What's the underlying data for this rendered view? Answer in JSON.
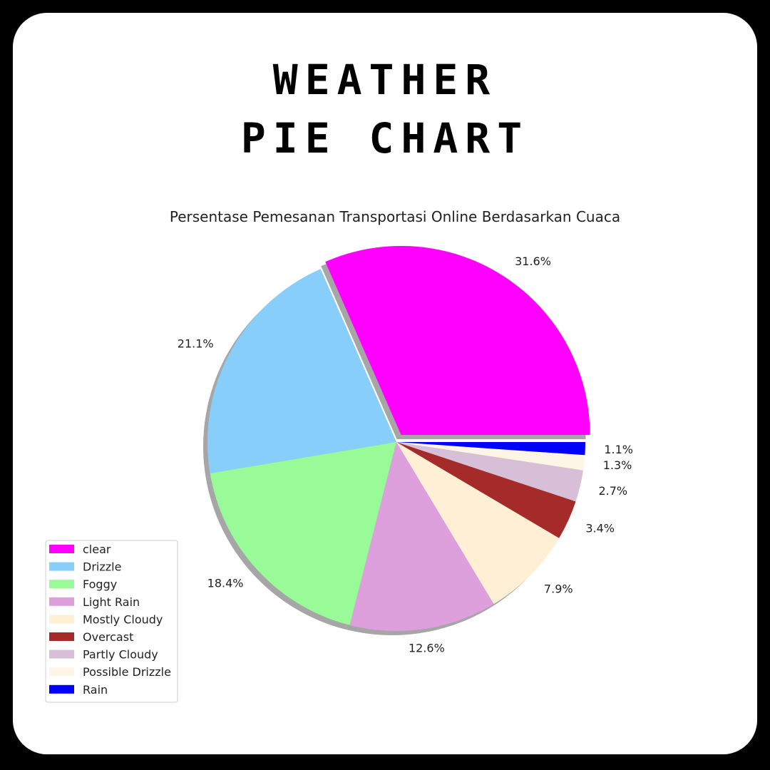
{
  "header": {
    "title_line_1": "WEATHER",
    "title_line_2": "PIE CHART"
  },
  "chart_data": {
    "type": "pie",
    "title": "Persentase Pemesanan Transportasi Online Berdasarkan Cuaca",
    "slices": [
      {
        "label": "clear",
        "value": 31.6,
        "display": "31.6%",
        "color": "#ff00ff",
        "exploded": true
      },
      {
        "label": "Drizzle",
        "value": 21.1,
        "display": "21.1%",
        "color": "#87cefa",
        "exploded": false
      },
      {
        "label": "Foggy",
        "value": 18.4,
        "display": "18.4%",
        "color": "#98fb98",
        "exploded": false
      },
      {
        "label": "Light Rain",
        "value": 12.6,
        "display": "12.6%",
        "color": "#dda0dd",
        "exploded": false
      },
      {
        "label": "Mostly Cloudy",
        "value": 7.9,
        "display": "7.9%",
        "color": "#ffefd5",
        "exploded": false
      },
      {
        "label": "Overcast",
        "value": 3.4,
        "display": "3.4%",
        "color": "#a52a2a",
        "exploded": false
      },
      {
        "label": "Partly Cloudy",
        "value": 2.7,
        "display": "2.7%",
        "color": "#d8bfd8",
        "exploded": false
      },
      {
        "label": "Possible Drizzle",
        "value": 1.3,
        "display": "1.3%",
        "color": "#fdf5e6",
        "exploded": false
      },
      {
        "label": "Rain",
        "value": 1.1,
        "display": "1.1%",
        "color": "#0000ff",
        "exploded": false
      }
    ],
    "shadow": true,
    "legend_position": "lower-left"
  }
}
